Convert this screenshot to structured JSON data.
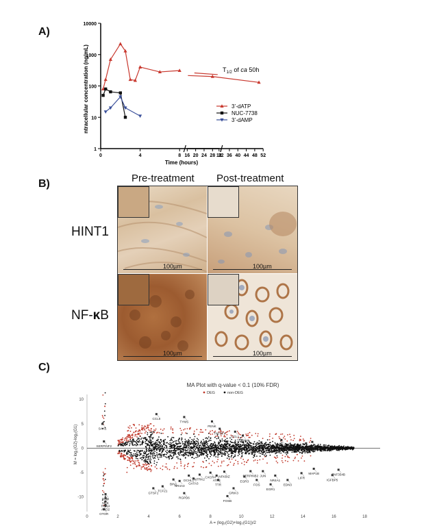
{
  "panels": {
    "a": "A)",
    "b": "B)",
    "c": "C)"
  },
  "chart_data": [
    {
      "type": "line",
      "title": "",
      "xlabel": "Time (hours)",
      "ylabel": "ntracellular concentration  (ng/mL)",
      "yscale": "log",
      "ylim": [
        1,
        10000
      ],
      "yticks": [
        "1",
        "10",
        "100",
        "1000",
        "10000"
      ],
      "xticks_left": [
        "0",
        "4",
        "8",
        "12"
      ],
      "xticks_right": [
        "16",
        "20",
        "24",
        "28",
        "32",
        "36",
        "40",
        "44",
        "48",
        "52"
      ],
      "axis_break": true,
      "annotation": {
        "prefix": "T",
        "sub": "1/2",
        "middle": " of ",
        "italic": "ca",
        "suffix": " 50h"
      },
      "legend_position": "right",
      "series": [
        {
          "name": "3’-dATP",
          "color": "#c8372d",
          "marker": "triangle-up",
          "x": [
            0.25,
            0.5,
            1,
            2,
            2.5,
            3,
            3.5,
            4,
            6,
            8,
            28,
            50
          ],
          "y": [
            80,
            160,
            700,
            2200,
            1300,
            160,
            150,
            400,
            280,
            310,
            200,
            130
          ]
        },
        {
          "name": "NUC-7738",
          "color": "#111111",
          "marker": "square",
          "x": [
            0.25,
            0.5,
            1,
            2,
            2.5
          ],
          "y": [
            50,
            80,
            65,
            60,
            10
          ]
        },
        {
          "name": "3’-dAMP",
          "color": "#3a4f9a",
          "marker": "triangle-down",
          "x": [
            0.5,
            1,
            2,
            2.5,
            4
          ],
          "y": [
            15,
            20,
            45,
            20,
            11
          ]
        }
      ]
    },
    {
      "type": "scatter",
      "title": "MA Plot with q-value < 0.1 (10% FDR)",
      "xlabel": "A = (log₂(G2)+log₂(G1))/2",
      "ylabel": "M = log₂(G2)-log₂(G1)",
      "xlim": [
        0,
        19
      ],
      "ylim": [
        -13,
        11
      ],
      "xticks": [
        "0",
        "2",
        "4",
        "6",
        "8",
        "10",
        "12",
        "14",
        "16",
        "18"
      ],
      "yticks": [
        "10",
        "5",
        "0",
        "-5",
        "-10"
      ],
      "legend": [
        {
          "name": "DEG",
          "color": "#c0392b"
        },
        {
          "name": "non-DEG",
          "color": "#111111"
        }
      ],
      "legend_position": "top",
      "gene_labels": [
        {
          "text": "SAA1",
          "x": 1.0,
          "y": 4.2
        },
        {
          "text": "SERPINF2",
          "x": 1.1,
          "y": 0.6
        },
        {
          "text": "CCL8",
          "x": 4.5,
          "y": 6.2
        },
        {
          "text": "TYMS",
          "x": 6.3,
          "y": 5.6
        },
        {
          "text": "PENK",
          "x": 8.1,
          "y": 4.7
        },
        {
          "text": "TNFSF4",
          "x": 8.6,
          "y": 3.2
        },
        {
          "text": "CCL1",
          "x": 9.6,
          "y": 2.6
        },
        {
          "text": "TSPAN4",
          "x": 10.1,
          "y": 1.8
        },
        {
          "text": "CTSB",
          "x": 11.3,
          "y": 0.4
        },
        {
          "text": "HEY1",
          "x": 12.6,
          "y": 0.9
        },
        {
          "text": "CELSR1",
          "x": 14.2,
          "y": 0.2
        },
        {
          "text": "KRT81",
          "x": 14.6,
          "y": 0.5
        },
        {
          "text": "GTSF1",
          "x": 4.3,
          "y": -9.0
        },
        {
          "text": "TCF21",
          "x": 4.9,
          "y": -8.6
        },
        {
          "text": "BIN1",
          "x": 5.6,
          "y": -7.2
        },
        {
          "text": "RGPD6",
          "x": 6.3,
          "y": -10.0
        },
        {
          "text": "DCHL1",
          "x": 6.6,
          "y": -6.4
        },
        {
          "text": "NR4A3",
          "x": 6.0,
          "y": -7.5
        },
        {
          "text": "GATA3",
          "x": 6.9,
          "y": -7.0
        },
        {
          "text": "NTRK2",
          "x": 7.3,
          "y": -6.2
        },
        {
          "text": "CXCR4",
          "x": 8.0,
          "y": -5.8
        },
        {
          "text": "NFKBIZ",
          "x": 8.9,
          "y": -5.6
        },
        {
          "text": "TTR",
          "x": 8.5,
          "y": -7.3
        },
        {
          "text": "ATF3",
          "x": 8.4,
          "y": -6.4
        },
        {
          "text": "GRIK3",
          "x": 9.5,
          "y": -9.0
        },
        {
          "text": "FOSB",
          "x": 9.1,
          "y": -10.6
        },
        {
          "text": "SERPINB2",
          "x": 10.6,
          "y": -5.5
        },
        {
          "text": "EGR3",
          "x": 10.2,
          "y": -6.6
        },
        {
          "text": "FOS",
          "x": 11.0,
          "y": -7.3
        },
        {
          "text": "JUN",
          "x": 11.4,
          "y": -5.5
        },
        {
          "text": "NR4A1",
          "x": 12.2,
          "y": -6.4
        },
        {
          "text": "EGR1",
          "x": 11.9,
          "y": -8.2
        },
        {
          "text": "EDN3",
          "x": 13.0,
          "y": -7.3
        },
        {
          "text": "LIFR",
          "x": 13.9,
          "y": -5.9
        },
        {
          "text": "MAP1B",
          "x": 14.7,
          "y": -5.0
        },
        {
          "text": "ZNF354B",
          "x": 16.3,
          "y": -5.2
        },
        {
          "text": "IGFBP5",
          "x": 15.9,
          "y": -6.3
        },
        {
          "text": "DMB",
          "x": 1.2,
          "y": -10.2
        },
        {
          "text": "MLX",
          "x": 1.2,
          "y": -11.0
        },
        {
          "text": "ROX4",
          "x": 1.2,
          "y": -11.7
        },
        {
          "text": "ARD2",
          "x": 1.2,
          "y": -12.4
        },
        {
          "text": "OTOR",
          "x": 1.1,
          "y": -13.3
        }
      ]
    }
  ],
  "ihc": {
    "col_pre": "Pre-treatment",
    "col_post": "Post-treatment",
    "row_hint": "HINT1",
    "row_nfkb_pre": "NF-",
    "row_nfkb_kappa": "κ",
    "row_nfkb_post": "B",
    "scale": "100µm"
  },
  "colors": {
    "red": "#c8372d",
    "blue": "#3a4f9a",
    "tissue_light": "#e6d2b8",
    "tissue_brown": "#a9673a"
  }
}
